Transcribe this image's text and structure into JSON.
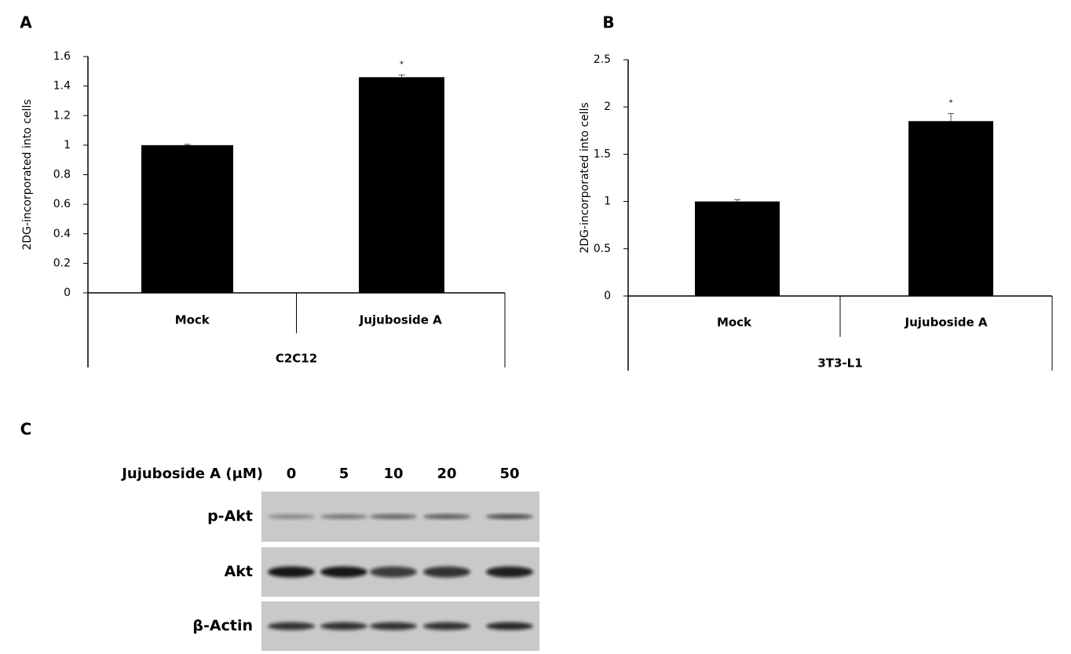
{
  "chart_data": [
    {
      "type": "bar",
      "panel": "A",
      "y_label": "2DG-incorporated into cells",
      "categories": [
        "Mock",
        "Jujuboside A"
      ],
      "group_label": "C2C12",
      "values": [
        1.0,
        1.46
      ],
      "errors": [
        0.005,
        0.015
      ],
      "significance": [
        null,
        "*"
      ],
      "color": "#000000",
      "ylim": [
        0,
        1.6
      ],
      "yticks": [
        0,
        0.2,
        0.4,
        0.6,
        0.8,
        1,
        1.2,
        1.4,
        1.6
      ],
      "grid": false
    },
    {
      "type": "bar",
      "panel": "B",
      "y_label": "2DG-incorporated into cells",
      "categories": [
        "Mock",
        "Jujuboside A"
      ],
      "group_label": "3T3-L1",
      "values": [
        1.0,
        1.85
      ],
      "errors": [
        0.02,
        0.08
      ],
      "significance": [
        null,
        "*"
      ],
      "color": "#000000",
      "ylim": [
        0,
        2.5
      ],
      "yticks": [
        0,
        0.5,
        1,
        1.5,
        2,
        2.5
      ],
      "grid": false
    }
  ],
  "blot": {
    "panel": "C",
    "header": "Jujuboside A (μM)",
    "doses": [
      "0",
      "5",
      "10",
      "20",
      "50"
    ],
    "rows": [
      "p-Akt",
      "Akt",
      "β-Actin"
    ]
  }
}
